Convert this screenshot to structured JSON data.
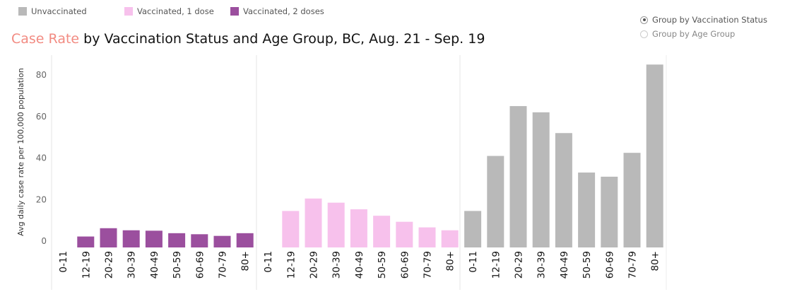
{
  "legend": {
    "items": [
      {
        "label": "Unvaccinated",
        "color": "#b9b9b9"
      },
      {
        "label": "Vaccinated, 1 dose",
        "color": "#f7c1ec"
      },
      {
        "label": "Vaccinated, 2 doses",
        "color": "#9b4f9e"
      }
    ]
  },
  "title": {
    "accent": "Case Rate",
    "rest": " by Vaccination Status and Age Group, BC, Aug. 21 - Sep. 19",
    "accent_color": "#f28b82"
  },
  "controls": {
    "radio_status": "Group by Vaccination Status",
    "radio_age": "Group by Age Group",
    "selected": "Group by Vaccination Status"
  },
  "chart_data": {
    "type": "bar",
    "title": "Case Rate by Vaccination Status and Age Group, BC, Aug. 21 - Sep. 19",
    "ylabel": "Avg daily case rate per 100,000 population",
    "xlabel": "",
    "ylim": [
      0,
      85
    ],
    "yticks": [
      0,
      20,
      40,
      60,
      80
    ],
    "categories": [
      "0-11",
      "12-19",
      "20-29",
      "30-39",
      "40-49",
      "50-59",
      "60-69",
      "70-79",
      "80+"
    ],
    "series": [
      {
        "name": "Vaccinated, 2 doses",
        "color": "#9b4f9e",
        "values": [
          null,
          2.2,
          6.2,
          5.2,
          5.0,
          3.8,
          3.3,
          2.5,
          3.8
        ]
      },
      {
        "name": "Vaccinated, 1 dose",
        "color": "#f7c1ec",
        "values": [
          null,
          14.5,
          20.5,
          18.5,
          15.3,
          12.2,
          9.3,
          6.6,
          5.2
        ]
      },
      {
        "name": "Unvaccinated",
        "color": "#b9b9b9",
        "values": [
          14.5,
          41.0,
          65.0,
          62.0,
          52.0,
          33.0,
          31.0,
          42.5,
          85.0
        ]
      }
    ],
    "grid": false,
    "legend_position": "top-left"
  }
}
